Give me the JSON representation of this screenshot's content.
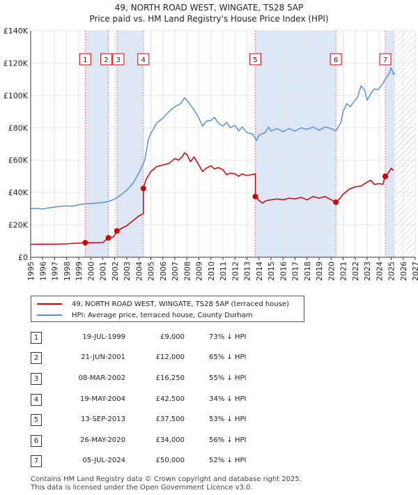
{
  "title": {
    "line1": "49, NORTH ROAD WEST, WINGATE, TS28 5AP",
    "line2": "Price paid vs. HM Land Registry's House Price Index (HPI)"
  },
  "colors": {
    "price_paid": "#cc0000",
    "hpi": "#5b8fd6",
    "shade": "#dce6f5",
    "grid": "#e6e6e6",
    "vline": "#e87a7a"
  },
  "chart_data": {
    "type": "line",
    "title": "49, NORTH ROAD WEST, WINGATE, TS28 5AP — Price paid vs. HM Land Registry's House Price Index (HPI)",
    "xlabel": "",
    "ylabel": "",
    "xlim": [
      1995,
      2027
    ],
    "ylim": [
      0,
      140000
    ],
    "x_ticks": [
      1995,
      1996,
      1997,
      1998,
      1999,
      2000,
      2001,
      2002,
      2003,
      2004,
      2005,
      2006,
      2007,
      2008,
      2009,
      2010,
      2011,
      2012,
      2013,
      2014,
      2015,
      2016,
      2017,
      2018,
      2019,
      2020,
      2021,
      2022,
      2023,
      2024,
      2025,
      2026,
      2027
    ],
    "y_ticks": [
      0,
      20000,
      40000,
      60000,
      80000,
      100000,
      120000,
      140000
    ],
    "y_tick_labels": [
      "£0",
      "£20K",
      "£40K",
      "£60K",
      "£80K",
      "£100K",
      "£120K",
      "£140K"
    ],
    "grid": true,
    "forecast_from": 2025.3,
    "series": [
      {
        "name": "49, NORTH ROAD WEST, WINGATE, TS28 5AP (terraced house)",
        "color": "#cc0000",
        "points": [
          [
            1995.0,
            8000
          ],
          [
            1996.0,
            8050
          ],
          [
            1997.0,
            8100
          ],
          [
            1998.0,
            8300
          ],
          [
            1999.54,
            9000
          ],
          [
            2000.0,
            8900
          ],
          [
            2001.0,
            9100
          ],
          [
            2001.47,
            12000
          ],
          [
            2001.9,
            12500
          ],
          [
            2002.18,
            16250
          ],
          [
            2002.6,
            18000
          ],
          [
            2003.0,
            19500
          ],
          [
            2003.5,
            22500
          ],
          [
            2004.0,
            25500
          ],
          [
            2004.38,
            27000
          ],
          [
            2004.38,
            42500
          ],
          [
            2004.6,
            48000
          ],
          [
            2005.0,
            53000
          ],
          [
            2005.5,
            56000
          ],
          [
            2006.0,
            57000
          ],
          [
            2006.5,
            58000
          ],
          [
            2007.0,
            61000
          ],
          [
            2007.3,
            60000
          ],
          [
            2007.6,
            62000
          ],
          [
            2007.8,
            64500
          ],
          [
            2008.0,
            63500
          ],
          [
            2008.3,
            59000
          ],
          [
            2008.6,
            62000
          ],
          [
            2009.0,
            57000
          ],
          [
            2009.3,
            53000
          ],
          [
            2009.6,
            55000
          ],
          [
            2010.0,
            56500
          ],
          [
            2010.3,
            54500
          ],
          [
            2010.6,
            55500
          ],
          [
            2011.0,
            54000
          ],
          [
            2011.3,
            51000
          ],
          [
            2011.6,
            52000
          ],
          [
            2012.0,
            51500
          ],
          [
            2012.3,
            50000
          ],
          [
            2012.6,
            51500
          ],
          [
            2013.0,
            50500
          ],
          [
            2013.7,
            51500
          ],
          [
            2013.7,
            37500
          ],
          [
            2014.0,
            35000
          ],
          [
            2014.3,
            33500
          ],
          [
            2014.6,
            35000
          ],
          [
            2015.0,
            35500
          ],
          [
            2015.5,
            36000
          ],
          [
            2016.0,
            35500
          ],
          [
            2016.5,
            36500
          ],
          [
            2017.0,
            36000
          ],
          [
            2017.5,
            37000
          ],
          [
            2018.0,
            35500
          ],
          [
            2018.5,
            37500
          ],
          [
            2019.0,
            36500
          ],
          [
            2019.5,
            37500
          ],
          [
            2020.0,
            35500
          ],
          [
            2020.4,
            34000
          ],
          [
            2020.7,
            36000
          ],
          [
            2021.0,
            39000
          ],
          [
            2021.5,
            42000
          ],
          [
            2022.0,
            43500
          ],
          [
            2022.5,
            44000
          ],
          [
            2023.0,
            46500
          ],
          [
            2023.3,
            47500
          ],
          [
            2023.6,
            45000
          ],
          [
            2024.0,
            45500
          ],
          [
            2024.3,
            45000
          ],
          [
            2024.51,
            50000
          ],
          [
            2024.8,
            52500
          ],
          [
            2025.0,
            55000
          ],
          [
            2025.2,
            53500
          ]
        ]
      },
      {
        "name": "HPI: Average price, terraced house, County Durham",
        "color": "#5b8fd6",
        "points": [
          [
            1995.0,
            30000
          ],
          [
            1995.5,
            30200
          ],
          [
            1996.0,
            29800
          ],
          [
            1996.5,
            30500
          ],
          [
            1997.0,
            31000
          ],
          [
            1997.5,
            31500
          ],
          [
            1998.0,
            31800
          ],
          [
            1998.5,
            31500
          ],
          [
            1999.0,
            32500
          ],
          [
            1999.5,
            33000
          ],
          [
            2000.0,
            33200
          ],
          [
            2000.5,
            33500
          ],
          [
            2001.0,
            33800
          ],
          [
            2001.5,
            34500
          ],
          [
            2002.0,
            36000
          ],
          [
            2002.5,
            38500
          ],
          [
            2003.0,
            41500
          ],
          [
            2003.5,
            45500
          ],
          [
            2004.0,
            52000
          ],
          [
            2004.5,
            60000
          ],
          [
            2004.8,
            73000
          ],
          [
            2005.0,
            76500
          ],
          [
            2005.5,
            83000
          ],
          [
            2006.0,
            86000
          ],
          [
            2006.5,
            90000
          ],
          [
            2007.0,
            93000
          ],
          [
            2007.5,
            95000
          ],
          [
            2007.8,
            98500
          ],
          [
            2008.0,
            97000
          ],
          [
            2008.3,
            94000
          ],
          [
            2008.6,
            91000
          ],
          [
            2009.0,
            86000
          ],
          [
            2009.3,
            81000
          ],
          [
            2009.6,
            84000
          ],
          [
            2010.0,
            84500
          ],
          [
            2010.3,
            86500
          ],
          [
            2010.6,
            83000
          ],
          [
            2011.0,
            81000
          ],
          [
            2011.3,
            83500
          ],
          [
            2011.6,
            80000
          ],
          [
            2012.0,
            81500
          ],
          [
            2012.3,
            78000
          ],
          [
            2012.6,
            80500
          ],
          [
            2013.0,
            77000
          ],
          [
            2013.5,
            76000
          ],
          [
            2013.8,
            72000
          ],
          [
            2014.0,
            75500
          ],
          [
            2014.5,
            77000
          ],
          [
            2014.8,
            80500
          ],
          [
            2015.0,
            78000
          ],
          [
            2015.5,
            79500
          ],
          [
            2016.0,
            77500
          ],
          [
            2016.5,
            79500
          ],
          [
            2017.0,
            78000
          ],
          [
            2017.5,
            80000
          ],
          [
            2018.0,
            79000
          ],
          [
            2018.5,
            80500
          ],
          [
            2019.0,
            78500
          ],
          [
            2019.5,
            80500
          ],
          [
            2020.0,
            79500
          ],
          [
            2020.4,
            78000
          ],
          [
            2020.8,
            83000
          ],
          [
            2021.0,
            90000
          ],
          [
            2021.3,
            95000
          ],
          [
            2021.6,
            93000
          ],
          [
            2021.9,
            96000
          ],
          [
            2022.2,
            99000
          ],
          [
            2022.5,
            106000
          ],
          [
            2022.8,
            103000
          ],
          [
            2023.0,
            97000
          ],
          [
            2023.3,
            101000
          ],
          [
            2023.6,
            104000
          ],
          [
            2023.9,
            103500
          ],
          [
            2024.2,
            106000
          ],
          [
            2024.5,
            110000
          ],
          [
            2024.8,
            113000
          ],
          [
            2025.0,
            117000
          ],
          [
            2025.2,
            113000
          ],
          [
            2025.3,
            114000
          ]
        ]
      }
    ],
    "sales": [
      {
        "label": "1",
        "x": 1999.54,
        "value": 9000
      },
      {
        "label": "2",
        "x": 2001.47,
        "value": 12000
      },
      {
        "label": "3",
        "x": 2002.18,
        "value": 16250
      },
      {
        "label": "4",
        "x": 2004.38,
        "value": 42500
      },
      {
        "label": "5",
        "x": 2013.7,
        "value": 37500
      },
      {
        "label": "6",
        "x": 2020.4,
        "value": 34000
      },
      {
        "label": "7",
        "x": 2024.51,
        "value": 50000
      }
    ]
  },
  "legend": {
    "price_paid_label": "49, NORTH ROAD WEST, WINGATE, TS28 5AP (terraced house)",
    "hpi_label": "HPI: Average price, terraced house, County Durham"
  },
  "transactions": [
    {
      "num": "1",
      "date": "19-JUL-1999",
      "price": "£9,000",
      "hpi": "73% ↓ HPI"
    },
    {
      "num": "2",
      "date": "21-JUN-2001",
      "price": "£12,000",
      "hpi": "65% ↓ HPI"
    },
    {
      "num": "3",
      "date": "08-MAR-2002",
      "price": "£16,250",
      "hpi": "55% ↓ HPI"
    },
    {
      "num": "4",
      "date": "19-MAY-2004",
      "price": "£42,500",
      "hpi": "34% ↓ HPI"
    },
    {
      "num": "5",
      "date": "13-SEP-2013",
      "price": "£37,500",
      "hpi": "53% ↓ HPI"
    },
    {
      "num": "6",
      "date": "26-MAY-2020",
      "price": "£34,000",
      "hpi": "56% ↓ HPI"
    },
    {
      "num": "7",
      "date": "05-JUL-2024",
      "price": "£50,000",
      "hpi": "52% ↓ HPI"
    }
  ],
  "footer": {
    "line1": "Contains HM Land Registry data © Crown copyright and database right 2025.",
    "line2": "This data is licensed under the Open Government Licence v3.0."
  }
}
